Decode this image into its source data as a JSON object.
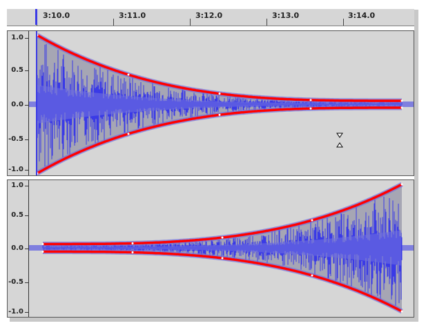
{
  "ruler": {
    "labels": [
      "3:10.0",
      "3:11.0",
      "3:12.0",
      "3:13.0",
      "3:14.0"
    ]
  },
  "track1": {
    "scale_labels": [
      "1.0",
      "0.5",
      "0.0",
      "-0.5",
      "-1.0"
    ]
  },
  "track2": {
    "scale_labels": [
      "1.0",
      "0.5",
      "0.0",
      "-0.5",
      "-1.0"
    ]
  },
  "colors": {
    "background": "#d6d6d6",
    "envelope_fill": "#a6a6b4",
    "waveform": "#3a3ae6",
    "rms_band": "#7070e0",
    "envelope_curve": "#ff0000",
    "playhead": "#3a3ae6"
  },
  "icons": {
    "envelope_cursor": "envelope-tool-cursor-icon"
  }
}
